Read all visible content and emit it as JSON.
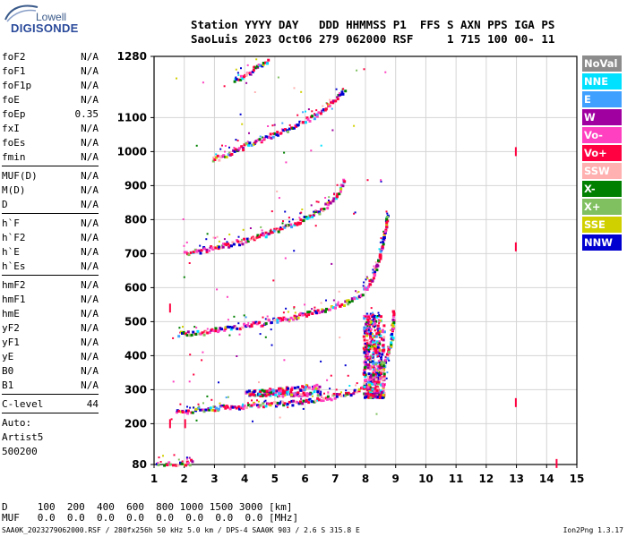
{
  "logo": {
    "line1": "Lowell",
    "line2": "DIGISONDE"
  },
  "header": {
    "line1": "Station YYYY DAY   DDD HHMMSS P1  FFS S AXN PPS IGA PS",
    "line2": "SaoLuis 2023 Oct06 279 062000 RSF     1 715 100 00- 11"
  },
  "params": [
    {
      "name": "foF2",
      "value": "N/A"
    },
    {
      "name": "foF1",
      "value": "N/A"
    },
    {
      "name": "foF1p",
      "value": "N/A"
    },
    {
      "name": "foE",
      "value": "N/A"
    },
    {
      "name": "foEp",
      "value": "0.35"
    },
    {
      "name": "fxI",
      "value": "N/A"
    },
    {
      "name": "foEs",
      "value": "N/A"
    },
    {
      "name": "fmin",
      "value": "N/A"
    },
    {
      "sep": true
    },
    {
      "name": "MUF(D)",
      "value": "N/A"
    },
    {
      "name": "M(D)",
      "value": "N/A"
    },
    {
      "name": "D",
      "value": "N/A"
    },
    {
      "sep": true
    },
    {
      "name": "h`F",
      "value": "N/A"
    },
    {
      "name": "h`F2",
      "value": "N/A"
    },
    {
      "name": "h`E",
      "value": "N/A"
    },
    {
      "name": "h`Es",
      "value": "N/A"
    },
    {
      "sep": true
    },
    {
      "name": "hmF2",
      "value": "N/A"
    },
    {
      "name": "hmF1",
      "value": "N/A"
    },
    {
      "name": "hmE",
      "value": "N/A"
    },
    {
      "name": "yF2",
      "value": "N/A"
    },
    {
      "name": "yF1",
      "value": "N/A"
    },
    {
      "name": "yE",
      "value": "N/A"
    },
    {
      "name": "B0",
      "value": "N/A"
    },
    {
      "name": "B1",
      "value": "N/A"
    },
    {
      "sep": true
    },
    {
      "name": "C-level",
      "value": "44"
    },
    {
      "sep": true
    }
  ],
  "status": [
    "Auto:",
    "Artist5",
    "500200"
  ],
  "legend": [
    {
      "label": "NoVal",
      "color": "#8c8c8c"
    },
    {
      "label": "NNE",
      "color": "#00e0ff"
    },
    {
      "label": "E",
      "color": "#40a0ff"
    },
    {
      "label": "W",
      "color": "#a000a0"
    },
    {
      "label": "Vo-",
      "color": "#ff40c0"
    },
    {
      "label": "Vo+",
      "color": "#ff0040"
    },
    {
      "label": "SSW",
      "color": "#ffb0b0"
    },
    {
      "label": "X-",
      "color": "#008000"
    },
    {
      "label": "X+",
      "color": "#80c060"
    },
    {
      "label": "SSE",
      "color": "#d0d000"
    },
    {
      "label": "NNW",
      "color": "#0000d0"
    }
  ],
  "bottom": {
    "line1": "D     100  200  400  600  800 1000 1500 3000 [km]",
    "line2": "MUF   0.0  0.0  0.0  0.0  0.0  0.0  0.0  0.0 [MHz]"
  },
  "footer": {
    "left": "SAA0K_2023279062000.RSF / 280fx256h 50 kHz 5.0 km / DPS-4 SAA0K 903 / 2.6 S 315.8 E",
    "right": "Ion2Png 1.3.17"
  },
  "chart_data": {
    "type": "scatter",
    "xlim": [
      1,
      15
    ],
    "ylim": [
      80,
      1280
    ],
    "xticks": [
      1,
      2,
      3,
      4,
      5,
      6,
      7,
      8,
      9,
      10,
      11,
      12,
      13,
      14,
      15
    ],
    "yticks": [
      80,
      200,
      300,
      400,
      500,
      600,
      700,
      800,
      900,
      1000,
      1100,
      1280
    ],
    "grid": true,
    "traces": [
      {
        "name": "trace-1",
        "points": [
          [
            1.0,
            80
          ],
          [
            1.5,
            81
          ],
          [
            2.0,
            84
          ],
          [
            2.3,
            90
          ]
        ]
      },
      {
        "name": "trace-2",
        "points": [
          [
            1.7,
            235
          ],
          [
            2.5,
            245
          ],
          [
            3.5,
            252
          ],
          [
            4.5,
            258
          ],
          [
            5.5,
            265
          ],
          [
            6.5,
            275
          ],
          [
            7.5,
            295
          ],
          [
            8.0,
            310
          ],
          [
            8.3,
            330
          ],
          [
            8.5,
            360
          ],
          [
            8.7,
            400
          ],
          [
            8.85,
            450
          ],
          [
            8.9,
            540
          ]
        ]
      },
      {
        "name": "trace-3",
        "points": [
          [
            1.8,
            465
          ],
          [
            2.5,
            472
          ],
          [
            3.5,
            485
          ],
          [
            4.5,
            498
          ],
          [
            5.5,
            515
          ],
          [
            6.5,
            535
          ],
          [
            7.2,
            555
          ],
          [
            7.7,
            575
          ],
          [
            8.0,
            600
          ],
          [
            8.2,
            630
          ],
          [
            8.4,
            680
          ],
          [
            8.6,
            760
          ],
          [
            8.7,
            820
          ]
        ]
      },
      {
        "name": "trace-4",
        "points": [
          [
            2.0,
            705
          ],
          [
            2.5,
            712
          ],
          [
            3.5,
            730
          ],
          [
            4.5,
            755
          ],
          [
            5.5,
            785
          ],
          [
            6.5,
            830
          ],
          [
            7.0,
            870
          ],
          [
            7.3,
            920
          ]
        ]
      },
      {
        "name": "trace-5",
        "points": [
          [
            2.9,
            980
          ],
          [
            3.5,
            1000
          ],
          [
            4.5,
            1040
          ],
          [
            5.5,
            1070
          ],
          [
            6.5,
            1120
          ],
          [
            7.3,
            1180
          ]
        ]
      },
      {
        "name": "trace-6",
        "points": [
          [
            3.6,
            1210
          ],
          [
            4.2,
            1240
          ],
          [
            4.8,
            1275
          ]
        ]
      }
    ],
    "clusters": [
      {
        "name": "cluster-1",
        "x": [
          7.9,
          8.6
        ],
        "y": [
          280,
          520
        ]
      },
      {
        "name": "cluster-2",
        "x": [
          4.0,
          6.5
        ],
        "y": [
          285,
          320
        ]
      }
    ],
    "isolated": [
      {
        "x": 12.95,
        "y": 1000
      },
      {
        "x": 12.95,
        "y": 720
      },
      {
        "x": 12.95,
        "y": 262
      },
      {
        "x": 14.3,
        "y": 83
      },
      {
        "x": 1.5,
        "y": 540
      },
      {
        "x": 1.5,
        "y": 200
      },
      {
        "x": 2.0,
        "y": 200
      }
    ]
  }
}
